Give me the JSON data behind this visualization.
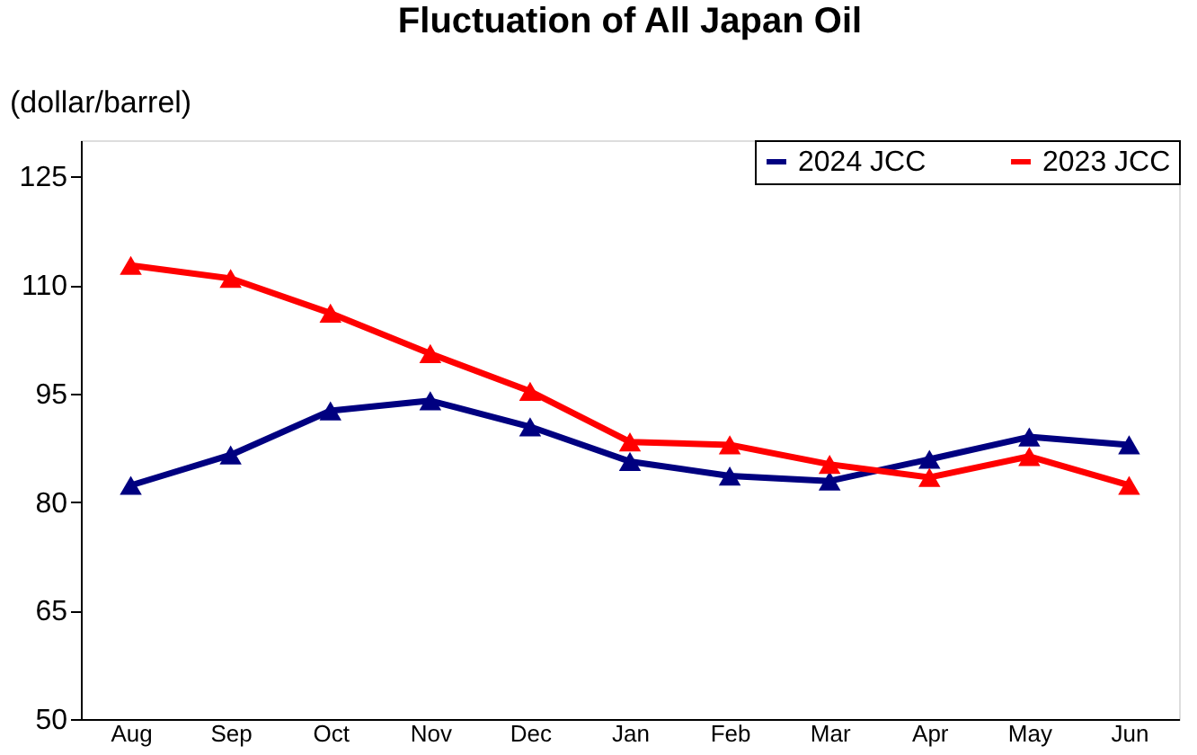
{
  "chart_data": {
    "type": "line",
    "title": "Fluctuation of All Japan Oil",
    "ylabel": "(dollar/barrel)",
    "categories": [
      "Aug",
      "Sep",
      "Oct",
      "Nov",
      "Dec",
      "Jan",
      "Feb",
      "Mar",
      "Apr",
      "May",
      "Jun"
    ],
    "series": [
      {
        "name": "2024 JCC",
        "color": "#000080",
        "values": [
          82.3,
          86.5,
          92.6,
          94.0,
          90.4,
          85.6,
          83.6,
          82.9,
          85.9,
          89.0,
          87.9
        ]
      },
      {
        "name": "2023 JCC",
        "color": "#ff0000",
        "values": [
          112.7,
          110.9,
          106.1,
          100.5,
          95.3,
          88.3,
          87.9,
          85.2,
          83.4,
          86.3,
          82.3
        ]
      }
    ],
    "ylim": [
      50,
      130
    ],
    "yticks": [
      50,
      65,
      80,
      95,
      110,
      125
    ],
    "grid": false,
    "legend": "top right",
    "marker": "triangle",
    "line_style": "solid"
  }
}
